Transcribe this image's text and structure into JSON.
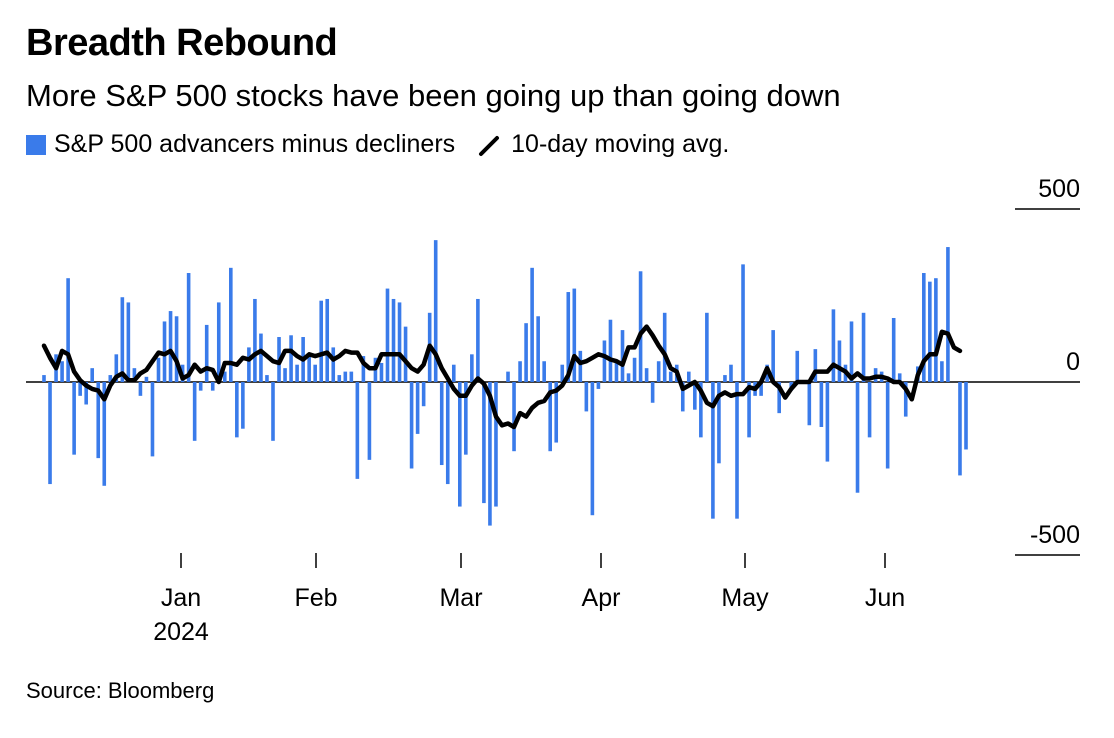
{
  "title": "Breadth Rebound",
  "subtitle": "More S&P 500 stocks have been going up than going down",
  "source": "Source: Bloomberg",
  "colors": {
    "bars": "#3a7bea",
    "line": "#000000",
    "axis": "#000000"
  },
  "chart_data": {
    "type": "bar",
    "legend": [
      {
        "label": "S&P 500 advancers minus decliners",
        "kind": "bar"
      },
      {
        "label": "10-day moving avg.",
        "kind": "line"
      }
    ],
    "ylim": [
      -500,
      500
    ],
    "y_ticks": [
      500,
      0,
      -500
    ],
    "y_tick_labels": [
      "500",
      "0",
      "-500"
    ],
    "y_axis_side": "right",
    "x_ticks": [
      {
        "label": "Jan",
        "sublabel": "2024"
      },
      {
        "label": "Feb",
        "sublabel": ""
      },
      {
        "label": "Mar",
        "sublabel": ""
      },
      {
        "label": "Apr",
        "sublabel": ""
      },
      {
        "label": "May",
        "sublabel": ""
      },
      {
        "label": "Jun",
        "sublabel": ""
      }
    ],
    "series": [
      {
        "name": "S&P 500 advancers minus decliners",
        "type": "bar",
        "values": [
          20,
          -295,
          80,
          60,
          300,
          -210,
          -40,
          -65,
          40,
          -220,
          -300,
          20,
          80,
          245,
          230,
          40,
          -40,
          15,
          -215,
          70,
          175,
          205,
          190,
          50,
          315,
          -170,
          -25,
          165,
          -25,
          230,
          30,
          330,
          -160,
          -135,
          100,
          240,
          140,
          20,
          -170,
          130,
          40,
          135,
          50,
          130,
          80,
          50,
          235,
          240,
          100,
          20,
          30,
          30,
          -280,
          75,
          -225,
          70,
          55,
          270,
          240,
          230,
          160,
          -250,
          -150,
          -70,
          200,
          410,
          -240,
          -295,
          50,
          -360,
          -210,
          80,
          240,
          -350,
          -415,
          -360,
          0,
          30,
          -200,
          60,
          170,
          330,
          190,
          60,
          -200,
          -175,
          50,
          260,
          270,
          90,
          -85,
          -385,
          -20,
          120,
          180,
          60,
          150,
          25,
          70,
          320,
          40,
          -60,
          60,
          200,
          30,
          50,
          -85,
          30,
          -80,
          -160,
          200,
          -395,
          -235,
          20,
          50,
          -395,
          340,
          -160,
          -40,
          -40,
          50,
          150,
          -90,
          0,
          -25,
          90,
          0,
          -125,
          95,
          -130,
          -230,
          210,
          120,
          50,
          175,
          -320,
          200,
          -160,
          40,
          30,
          -250,
          185,
          25,
          -100,
          0,
          45,
          315,
          290,
          300,
          60,
          390,
          0,
          -270,
          -195
        ]
      },
      {
        "name": "10-day moving avg.",
        "type": "line",
        "values": [
          105,
          70,
          40,
          90,
          80,
          30,
          5,
          -10,
          -20,
          -25,
          -50,
          -10,
          15,
          25,
          5,
          5,
          25,
          35,
          60,
          85,
          80,
          90,
          60,
          10,
          20,
          50,
          30,
          40,
          35,
          0,
          55,
          55,
          50,
          70,
          65,
          80,
          90,
          75,
          60,
          55,
          90,
          90,
          75,
          65,
          80,
          75,
          80,
          85,
          65,
          75,
          90,
          85,
          85,
          55,
          40,
          40,
          80,
          80,
          80,
          80,
          60,
          40,
          30,
          50,
          105,
          80,
          40,
          10,
          -20,
          -40,
          -40,
          -10,
          10,
          -5,
          -40,
          -100,
          -125,
          -120,
          -130,
          -90,
          -100,
          -75,
          -60,
          -55,
          -30,
          -25,
          -10,
          20,
          75,
          55,
          60,
          70,
          80,
          75,
          65,
          60,
          50,
          100,
          100,
          140,
          160,
          135,
          105,
          80,
          40,
          30,
          -20,
          -10,
          0,
          -25,
          -60,
          -70,
          -40,
          -30,
          -40,
          -35,
          -35,
          -15,
          -20,
          0,
          40,
          0,
          -15,
          -45,
          -20,
          0,
          0,
          0,
          30,
          30,
          30,
          50,
          40,
          30,
          10,
          25,
          10,
          10,
          15,
          15,
          10,
          0,
          0,
          -20,
          -50,
          20,
          60,
          80,
          80,
          145,
          140,
          100,
          90
        ]
      }
    ]
  }
}
